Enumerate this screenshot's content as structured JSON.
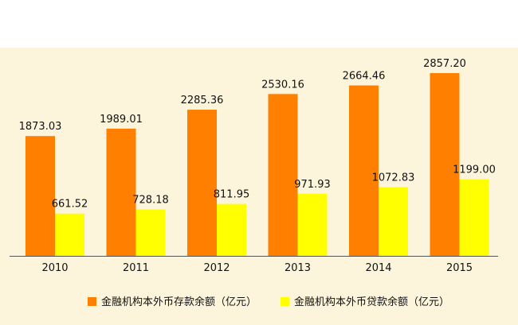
{
  "chart_data": {
    "type": "bar",
    "categories": [
      "2010",
      "2011",
      "2012",
      "2013",
      "2014",
      "2015"
    ],
    "series": [
      {
        "name": "金融机构本外币存款余额（亿元）",
        "values": [
          1873.03,
          1989.01,
          2285.36,
          2530.16,
          2664.46,
          2857.2
        ],
        "labels": [
          "1873.03",
          "1989.01",
          "2285.36",
          "2530.16",
          "2664.46",
          "2857.20"
        ]
      },
      {
        "name": "金融机构本外币贷款余额（亿元）",
        "values": [
          661.52,
          728.18,
          811.95,
          971.93,
          1072.83,
          1199.0
        ],
        "labels": [
          "661.52",
          "728.18",
          "811.95",
          "971.93",
          "1072.83",
          "1199.00"
        ]
      }
    ],
    "ylim": [
      0,
      3000
    ],
    "grid": false,
    "legend_position": "bottom",
    "colors": {
      "background": "#FCF5DC",
      "series": [
        "#FF8000",
        "#FFFF00"
      ],
      "axis": "#555555",
      "text": "#111111"
    }
  }
}
